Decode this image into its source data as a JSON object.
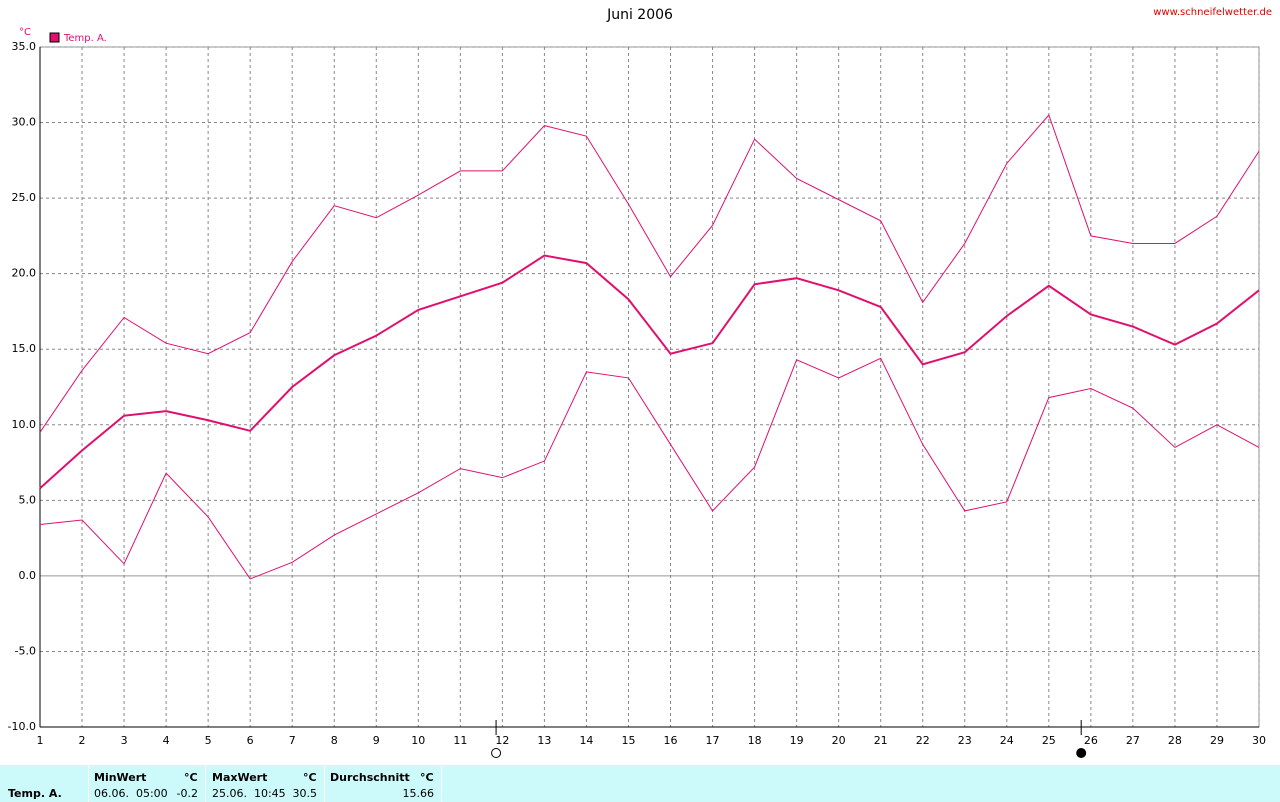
{
  "chart_data": {
    "type": "line",
    "title": "Juni 2006",
    "source": "www.schneifelwetter.de",
    "y_label": "°C",
    "x": [
      1,
      2,
      3,
      4,
      5,
      6,
      7,
      8,
      9,
      10,
      11,
      12,
      13,
      14,
      15,
      16,
      17,
      18,
      19,
      20,
      21,
      22,
      23,
      24,
      25,
      26,
      27,
      28,
      29,
      30
    ],
    "xlim": [
      1,
      30
    ],
    "xticks": [
      1,
      2,
      3,
      4,
      5,
      6,
      7,
      8,
      9,
      10,
      11,
      12,
      13,
      14,
      15,
      16,
      17,
      18,
      19,
      20,
      21,
      22,
      23,
      24,
      25,
      26,
      27,
      28,
      29,
      30
    ],
    "ylim": [
      -10,
      35
    ],
    "yticks": [
      {
        "value": -10,
        "label": "-10.0"
      },
      {
        "value": -5,
        "label": "-5.0"
      },
      {
        "value": 0,
        "label": "0.0"
      },
      {
        "value": 5,
        "label": "5.0"
      },
      {
        "value": 10,
        "label": "10.0"
      },
      {
        "value": 15,
        "label": "15.0"
      },
      {
        "value": 20,
        "label": "20.0"
      },
      {
        "value": 25,
        "label": "25.0"
      },
      {
        "value": 30,
        "label": "30.0"
      },
      {
        "value": 35,
        "label": "35.0"
      }
    ],
    "grid": true,
    "legend": "top-left",
    "series": [
      {
        "color": "#e0106e",
        "line_width": 1,
        "values": [
          9.5,
          13.6,
          17.1,
          15.4,
          14.7,
          16.1,
          20.8,
          24.5,
          23.7,
          25.2,
          26.8,
          26.8,
          29.8,
          29.1,
          24.6,
          19.8,
          23.2,
          28.9,
          26.3,
          24.9,
          23.5,
          18.1,
          22.0,
          27.3,
          30.5,
          22.5,
          22.0,
          22.0,
          23.8,
          28.1
        ]
      },
      {
        "name": "Temp. A.",
        "color": "#e0106e",
        "line_width": 2,
        "values": [
          5.8,
          8.3,
          10.6,
          10.9,
          10.3,
          9.6,
          12.5,
          14.6,
          15.9,
          17.6,
          18.5,
          19.4,
          21.2,
          20.7,
          18.3,
          14.7,
          15.4,
          19.3,
          19.7,
          18.9,
          17.8,
          14.0,
          14.8,
          17.2,
          19.2,
          17.3,
          16.5,
          15.3,
          16.7,
          18.9
        ]
      },
      {
        "color": "#e0106e",
        "line_width": 1,
        "values": [
          3.4,
          3.7,
          0.8,
          6.8,
          3.9,
          -0.2,
          0.9,
          2.7,
          4.1,
          5.5,
          7.1,
          6.5,
          7.6,
          13.5,
          13.1,
          8.7,
          4.3,
          7.2,
          14.3,
          13.1,
          14.4,
          8.7,
          4.3,
          4.9,
          11.8,
          12.4,
          11.1,
          8.5,
          10.0,
          8.5
        ]
      }
    ],
    "moon_phases": [
      {
        "x": 11.85,
        "filled": false
      },
      {
        "x": 25.77,
        "filled": true
      }
    ]
  },
  "summary": {
    "series": "Temp. A.",
    "columns": [
      {
        "header": "MinWert",
        "unit": "°C",
        "time": "06.06.  05:00",
        "value": -0.2
      },
      {
        "header": "MaxWert",
        "unit": "°C",
        "time": "25.06.  10:45",
        "value": 30.5
      },
      {
        "header": "Durchschnitt",
        "unit": "°C",
        "value": 15.66
      }
    ]
  }
}
